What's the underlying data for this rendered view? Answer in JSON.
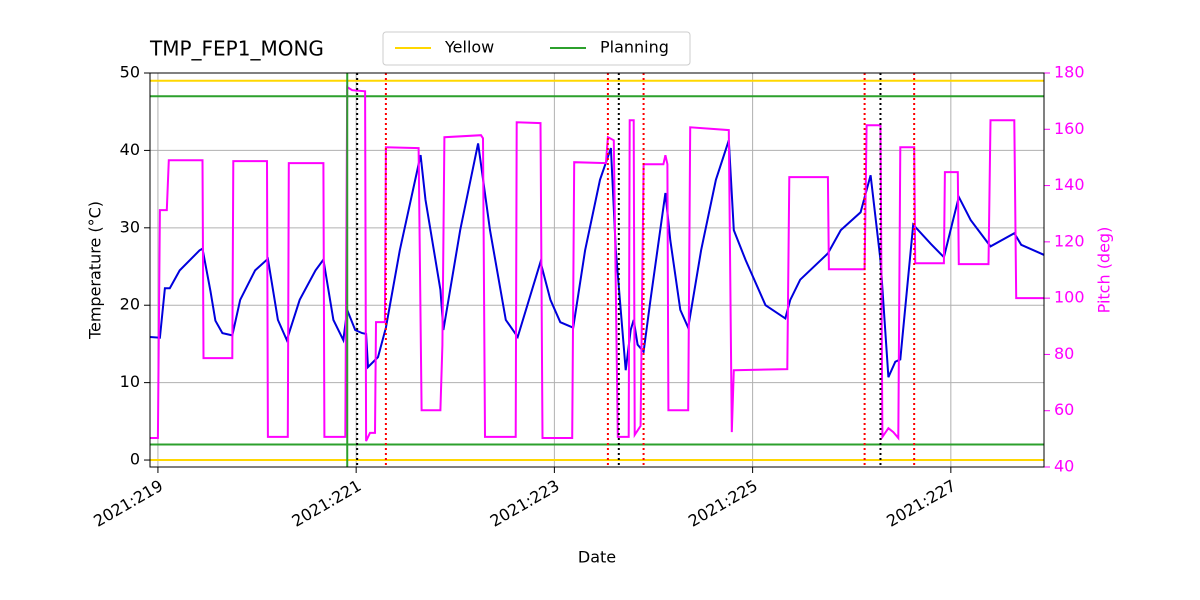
{
  "chart_data": {
    "type": "line",
    "title": "TMP_FEP1_MONG",
    "xlabel": "Date",
    "ylabel": "Temperature (°C)",
    "y2label": "Pitch (deg)",
    "xlim": [
      218.92,
      227.94
    ],
    "xticks": [
      {
        "value": 219,
        "label": "2021:219"
      },
      {
        "value": 221,
        "label": "2021:221"
      },
      {
        "value": 223,
        "label": "2021:223"
      },
      {
        "value": 225,
        "label": "2021:225"
      },
      {
        "value": 227,
        "label": "2021:227"
      }
    ],
    "ylim": [
      -0.9,
      50
    ],
    "yticks": [
      0,
      10,
      20,
      30,
      40,
      50
    ],
    "y2lim": [
      40,
      180
    ],
    "y2ticks": [
      40,
      60,
      80,
      100,
      120,
      140,
      160,
      180
    ],
    "y2color": "#ff00ff",
    "grid": true,
    "series": [
      {
        "color": "#0000dd",
        "x": [
          218.92,
          219.02,
          219.07,
          219.12,
          219.22,
          219.42,
          219.45,
          219.53,
          219.58,
          219.65,
          219.75,
          219.83,
          219.98,
          220.11,
          220.21,
          220.3,
          220.43,
          220.59,
          220.67,
          220.77,
          220.87,
          220.91,
          220.99,
          221.06,
          221.1,
          221.12,
          221.22,
          221.3,
          221.44,
          221.65,
          221.7,
          221.85,
          221.88,
          222.05,
          222.23,
          222.35,
          222.51,
          222.63,
          222.86,
          222.96,
          223.06,
          223.19,
          223.31,
          223.46,
          223.57,
          223.62,
          223.72,
          223.77,
          223.8,
          223.84,
          223.9,
          223.97,
          224.12,
          224.17,
          224.27,
          224.35,
          224.48,
          224.63,
          224.76,
          224.81,
          224.93,
          225.13,
          225.33,
          225.38,
          225.48,
          225.76,
          225.89,
          226.09,
          226.19,
          226.29,
          226.37,
          226.44,
          226.49,
          226.62,
          226.8,
          226.93,
          227.08,
          227.2,
          227.4,
          227.64,
          227.71,
          227.94
        ],
        "values": [
          15.9,
          15.8,
          22.2,
          22.2,
          24.5,
          27.1,
          27.3,
          21.8,
          18.0,
          16.4,
          16.1,
          20.7,
          24.5,
          26.0,
          18.1,
          15.5,
          20.7,
          24.5,
          25.9,
          18.1,
          15.5,
          19.4,
          16.8,
          16.4,
          16.3,
          12.0,
          13.3,
          17.1,
          27.1,
          39.4,
          33.6,
          22.0,
          16.8,
          29.7,
          40.9,
          29.7,
          18.1,
          15.9,
          25.6,
          20.7,
          17.8,
          17.1,
          27.1,
          36.2,
          40.3,
          27.1,
          11.6,
          16.8,
          18.1,
          14.9,
          14.0,
          20.7,
          34.5,
          28.4,
          19.4,
          17.1,
          27.1,
          36.2,
          41.3,
          29.7,
          25.8,
          20.0,
          18.3,
          20.7,
          23.3,
          26.7,
          29.7,
          32.0,
          36.8,
          25.8,
          10.7,
          12.7,
          13.0,
          30.4,
          27.9,
          26.2,
          34.0,
          31.0,
          27.6,
          29.3,
          27.8,
          26.5
        ]
      },
      {
        "color": "#ff00ff",
        "axis": "y2",
        "x": [
          218.92,
          219.0,
          219.02,
          219.09,
          219.11,
          219.45,
          219.46,
          219.75,
          219.76,
          220.1,
          220.11,
          220.31,
          220.32,
          220.67,
          220.68,
          220.89,
          220.91,
          220.96,
          221.09,
          221.1,
          221.14,
          221.19,
          221.2,
          221.29,
          221.3,
          221.63,
          221.66,
          221.85,
          221.87,
          221.89,
          222.26,
          222.28,
          222.3,
          222.61,
          222.62,
          222.86,
          222.88,
          223.18,
          223.2,
          223.52,
          223.54,
          223.6,
          223.64,
          223.75,
          223.76,
          223.8,
          223.81,
          223.87,
          223.9,
          224.1,
          224.12,
          224.14,
          224.15,
          224.35,
          224.37,
          224.76,
          224.79,
          224.81,
          225.35,
          225.37,
          225.76,
          225.77,
          226.13,
          226.15,
          226.29,
          226.31,
          226.37,
          226.42,
          226.47,
          226.49,
          226.63,
          226.64,
          226.93,
          226.94,
          227.07,
          227.08,
          227.38,
          227.4,
          227.64,
          227.66,
          227.94
        ],
        "values": [
          50.3,
          50.3,
          131.3,
          131.3,
          149.0,
          149.0,
          78.7,
          78.7,
          148.7,
          148.7,
          50.7,
          50.7,
          148.0,
          148.0,
          50.7,
          50.7,
          175.0,
          173.9,
          173.5,
          49.2,
          52.1,
          52.1,
          91.5,
          91.5,
          153.6,
          153.3,
          60.2,
          60.2,
          83.3,
          157.2,
          157.9,
          156.8,
          50.7,
          50.7,
          162.5,
          162.2,
          50.3,
          50.3,
          148.3,
          148.0,
          157.2,
          156.1,
          50.7,
          50.7,
          163.2,
          163.2,
          51.4,
          54.6,
          147.6,
          147.6,
          150.8,
          147.6,
          60.2,
          60.2,
          160.7,
          159.7,
          52.4,
          74.4,
          74.8,
          143.0,
          143.0,
          110.3,
          110.3,
          161.4,
          161.4,
          50.7,
          53.8,
          52.4,
          50.3,
          153.6,
          153.6,
          112.4,
          112.4,
          144.8,
          144.8,
          112.1,
          112.1,
          163.2,
          163.2,
          100.0,
          100.0
        ]
      }
    ],
    "hlines": [
      {
        "name": "Yellow",
        "color": "#ffd700",
        "values": [
          49,
          0
        ]
      },
      {
        "name": "Planning",
        "color": "#2ca02c",
        "values": [
          47,
          2
        ]
      }
    ],
    "vlines": [
      {
        "color": "#2ca02c",
        "style": "solid",
        "x": [
          220.91
        ]
      },
      {
        "color": "#000000",
        "style": "dotted",
        "x": [
          221.01,
          223.65,
          226.29
        ]
      },
      {
        "color": "#ff0000",
        "style": "dotted",
        "x": [
          221.3,
          223.54,
          223.9,
          226.13,
          226.63
        ]
      }
    ]
  }
}
